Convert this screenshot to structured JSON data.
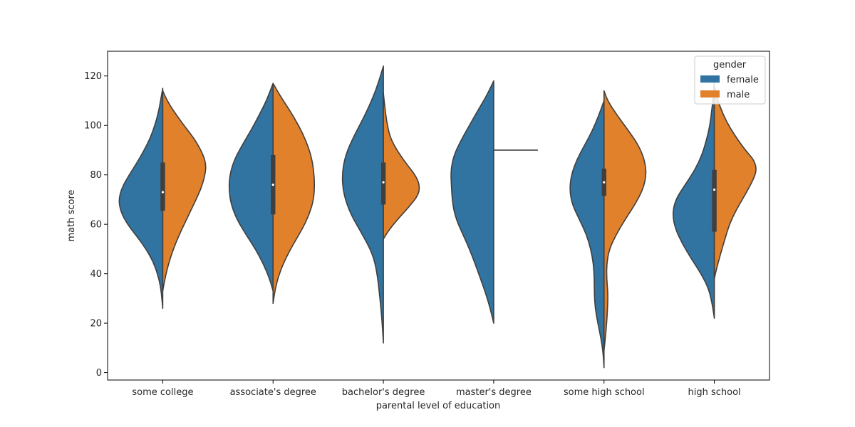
{
  "chart_data": {
    "type": "violin",
    "split": true,
    "xlabel": "parental level of education",
    "ylabel": "math score",
    "ylim": [
      -3,
      130
    ],
    "yticks": [
      0,
      20,
      40,
      60,
      80,
      100,
      120
    ],
    "categories": [
      "some college",
      "associate's degree",
      "bachelor's degree",
      "master's degree",
      "some high school",
      "high school"
    ],
    "legend": {
      "title": "gender",
      "placement": "top-right",
      "entries": [
        {
          "name": "female",
          "color": "#3274a1"
        },
        {
          "name": "male",
          "color": "#e1812c"
        }
      ]
    },
    "series": [
      {
        "name": "female",
        "color": "#3274a1",
        "violins": [
          {
            "ymin": 26,
            "ymax": 115,
            "profile": [
              [
                26,
                0
              ],
              [
                30,
                0.02
              ],
              [
                35,
                0.05
              ],
              [
                40,
                0.12
              ],
              [
                45,
                0.22
              ],
              [
                50,
                0.38
              ],
              [
                55,
                0.58
              ],
              [
                60,
                0.8
              ],
              [
                65,
                0.95
              ],
              [
                70,
                1.0
              ],
              [
                75,
                0.92
              ],
              [
                80,
                0.76
              ],
              [
                85,
                0.58
              ],
              [
                90,
                0.42
              ],
              [
                95,
                0.28
              ],
              [
                100,
                0.18
              ],
              [
                105,
                0.1
              ],
              [
                110,
                0.05
              ],
              [
                115,
                0
              ]
            ]
          },
          {
            "ymin": 33,
            "ymax": 117,
            "profile": [
              [
                33,
                0
              ],
              [
                38,
                0.08
              ],
              [
                44,
                0.22
              ],
              [
                50,
                0.4
              ],
              [
                56,
                0.62
              ],
              [
                62,
                0.82
              ],
              [
                68,
                0.95
              ],
              [
                74,
                1.0
              ],
              [
                80,
                0.98
              ],
              [
                86,
                0.88
              ],
              [
                92,
                0.7
              ],
              [
                98,
                0.5
              ],
              [
                104,
                0.32
              ],
              [
                110,
                0.15
              ],
              [
                117,
                0
              ]
            ]
          },
          {
            "ymin": 12,
            "ymax": 124,
            "profile": [
              [
                12,
                0
              ],
              [
                18,
                0.02
              ],
              [
                25,
                0.05
              ],
              [
                32,
                0.09
              ],
              [
                40,
                0.14
              ],
              [
                48,
                0.24
              ],
              [
                56,
                0.48
              ],
              [
                64,
                0.74
              ],
              [
                72,
                0.9
              ],
              [
                80,
                0.94
              ],
              [
                88,
                0.86
              ],
              [
                96,
                0.66
              ],
              [
                104,
                0.42
              ],
              [
                112,
                0.22
              ],
              [
                118,
                0.1
              ],
              [
                124,
                0
              ]
            ]
          },
          {
            "ymin": 20,
            "ymax": 118,
            "profile": [
              [
                20,
                0
              ],
              [
                26,
                0.08
              ],
              [
                32,
                0.18
              ],
              [
                38,
                0.3
              ],
              [
                44,
                0.42
              ],
              [
                50,
                0.55
              ],
              [
                56,
                0.7
              ],
              [
                62,
                0.85
              ],
              [
                68,
                0.93
              ],
              [
                76,
                0.96
              ],
              [
                82,
                0.97
              ],
              [
                88,
                0.9
              ],
              [
                94,
                0.74
              ],
              [
                100,
                0.55
              ],
              [
                106,
                0.36
              ],
              [
                112,
                0.16
              ],
              [
                118,
                0
              ]
            ]
          },
          {
            "ymin": 2,
            "ymax": 110,
            "profile": [
              [
                2,
                0
              ],
              [
                8,
                0.02
              ],
              [
                14,
                0.07
              ],
              [
                20,
                0.14
              ],
              [
                26,
                0.2
              ],
              [
                32,
                0.22
              ],
              [
                38,
                0.22
              ],
              [
                44,
                0.24
              ],
              [
                50,
                0.3
              ],
              [
                56,
                0.4
              ],
              [
                62,
                0.56
              ],
              [
                68,
                0.72
              ],
              [
                74,
                0.78
              ],
              [
                80,
                0.74
              ],
              [
                86,
                0.62
              ],
              [
                92,
                0.44
              ],
              [
                98,
                0.26
              ],
              [
                104,
                0.12
              ],
              [
                110,
                0
              ]
            ]
          },
          {
            "ymin": 22,
            "ymax": 118,
            "profile": [
              [
                22,
                0
              ],
              [
                28,
                0.05
              ],
              [
                34,
                0.13
              ],
              [
                40,
                0.3
              ],
              [
                46,
                0.52
              ],
              [
                52,
                0.72
              ],
              [
                58,
                0.88
              ],
              [
                64,
                0.95
              ],
              [
                70,
                0.88
              ],
              [
                76,
                0.66
              ],
              [
                82,
                0.44
              ],
              [
                88,
                0.28
              ],
              [
                94,
                0.18
              ],
              [
                100,
                0.1
              ],
              [
                106,
                0.06
              ],
              [
                112,
                0.02
              ],
              [
                118,
                0
              ]
            ]
          }
        ]
      },
      {
        "name": "male",
        "color": "#e1812c",
        "violins": [
          {
            "ymin": 33,
            "ymax": 114,
            "profile": [
              [
                33,
                0
              ],
              [
                38,
                0.05
              ],
              [
                44,
                0.13
              ],
              [
                50,
                0.24
              ],
              [
                56,
                0.38
              ],
              [
                62,
                0.54
              ],
              [
                68,
                0.7
              ],
              [
                74,
                0.86
              ],
              [
                80,
                0.96
              ],
              [
                84,
                0.98
              ],
              [
                88,
                0.92
              ],
              [
                94,
                0.74
              ],
              [
                100,
                0.48
              ],
              [
                106,
                0.24
              ],
              [
                110,
                0.1
              ],
              [
                114,
                0
              ]
            ]
          },
          {
            "ymin": 28,
            "ymax": 117,
            "profile": [
              [
                28,
                0
              ],
              [
                34,
                0.05
              ],
              [
                40,
                0.14
              ],
              [
                46,
                0.28
              ],
              [
                52,
                0.46
              ],
              [
                58,
                0.66
              ],
              [
                64,
                0.82
              ],
              [
                70,
                0.92
              ],
              [
                76,
                0.94
              ],
              [
                82,
                0.92
              ],
              [
                88,
                0.86
              ],
              [
                94,
                0.74
              ],
              [
                100,
                0.58
              ],
              [
                106,
                0.38
              ],
              [
                112,
                0.16
              ],
              [
                117,
                0
              ]
            ]
          },
          {
            "ymin": 54,
            "ymax": 113,
            "profile": [
              [
                54,
                0
              ],
              [
                57,
                0.1
              ],
              [
                62,
                0.32
              ],
              [
                67,
                0.58
              ],
              [
                72,
                0.8
              ],
              [
                76,
                0.82
              ],
              [
                80,
                0.72
              ],
              [
                84,
                0.54
              ],
              [
                88,
                0.38
              ],
              [
                92,
                0.24
              ],
              [
                96,
                0.14
              ],
              [
                102,
                0.07
              ],
              [
                108,
                0.03
              ],
              [
                113,
                0
              ]
            ]
          },
          {
            "ymin": 90,
            "ymax": 90,
            "profile": [
              [
                90,
                1.0
              ]
            ]
          },
          {
            "ymin": 9,
            "ymax": 114,
            "profile": [
              [
                9,
                0
              ],
              [
                14,
                0.03
              ],
              [
                20,
                0.06
              ],
              [
                26,
                0.08
              ],
              [
                32,
                0.09
              ],
              [
                38,
                0.06
              ],
              [
                44,
                0.06
              ],
              [
                50,
                0.12
              ],
              [
                56,
                0.28
              ],
              [
                62,
                0.48
              ],
              [
                68,
                0.7
              ],
              [
                74,
                0.88
              ],
              [
                80,
                0.96
              ],
              [
                86,
                0.92
              ],
              [
                92,
                0.78
              ],
              [
                98,
                0.55
              ],
              [
                104,
                0.3
              ],
              [
                110,
                0.08
              ],
              [
                114,
                0
              ]
            ]
          },
          {
            "ymin": 38,
            "ymax": 116,
            "profile": [
              [
                38,
                0
              ],
              [
                42,
                0.05
              ],
              [
                48,
                0.14
              ],
              [
                54,
                0.24
              ],
              [
                60,
                0.34
              ],
              [
                66,
                0.5
              ],
              [
                72,
                0.7
              ],
              [
                78,
                0.88
              ],
              [
                82,
                0.96
              ],
              [
                86,
                0.9
              ],
              [
                90,
                0.7
              ],
              [
                96,
                0.46
              ],
              [
                102,
                0.26
              ],
              [
                108,
                0.12
              ],
              [
                112,
                0.05
              ],
              [
                116,
                0
              ]
            ]
          }
        ]
      }
    ],
    "box": [
      {
        "q1": 65.5,
        "median": 73,
        "q3": 85
      },
      {
        "q1": 64,
        "median": 76,
        "q3": 88
      },
      {
        "q1": 68,
        "median": 77,
        "q3": 85
      },
      {
        "q1": null,
        "median": null,
        "q3": null
      },
      {
        "q1": 71.5,
        "median": 77,
        "q3": 82.5
      },
      {
        "q1": 57,
        "median": 74,
        "q3": 82
      }
    ]
  }
}
